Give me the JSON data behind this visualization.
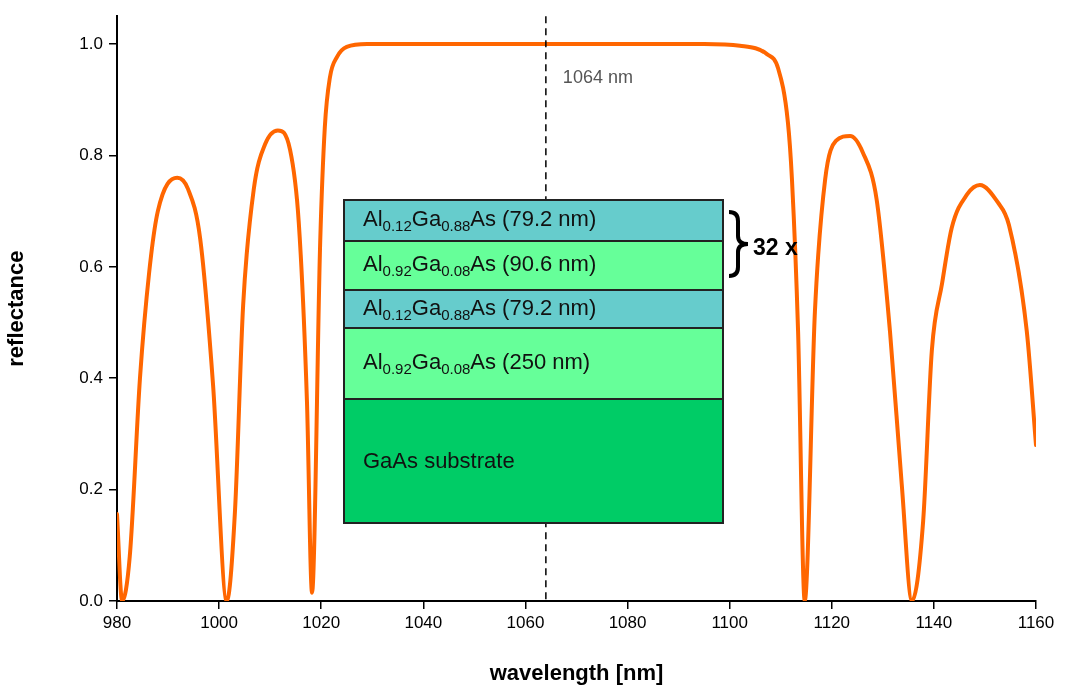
{
  "chart_data": {
    "type": "line",
    "xlabel": "wavelength [nm]",
    "ylabel": "reflectance",
    "series": [
      {
        "color": "#ff6600",
        "x": [
          980,
          981,
          982.5,
          984.5,
          986.3,
          988,
          991.8,
          993.9,
          996.3,
          998.8,
          1001.5,
          1003.1,
          1004.7,
          1006.8,
          1009,
          1011.5,
          1013.9,
          1015.6,
          1017.2,
          1018.2,
          1019.8,
          1020.7,
          1021.7,
          1023.1,
          1025,
          1029,
          1040,
          1060,
          1080,
          1095,
          1102,
          1107.3,
          1109.5,
          1111.4,
          1112.2,
          1113.4,
          1114.7,
          1116.7,
          1118.7,
          1120.8,
          1123.6,
          1126.1,
          1128.8,
          1131.4,
          1133.7,
          1135.7,
          1137.9,
          1139.6,
          1141.6,
          1143.5,
          1146.5,
          1149,
          1152.5,
          1154.7,
          1158.2,
          1160
        ],
        "values": [
          0.156,
          0,
          0.08,
          0.4,
          0.59,
          0.7,
          0.76,
          0.74,
          0.65,
          0.39,
          0,
          0.16,
          0.53,
          0.74,
          0.82,
          0.845,
          0.81,
          0.68,
          0.36,
          0.015,
          0.645,
          0.85,
          0.94,
          0.977,
          0.995,
          1,
          1,
          1,
          1,
          1,
          0.997,
          0.982,
          0.956,
          0.86,
          0.757,
          0.484,
          0,
          0.52,
          0.757,
          0.826,
          0.835,
          0.805,
          0.72,
          0.484,
          0.21,
          0,
          0.144,
          0.45,
          0.57,
          0.67,
          0.73,
          0.747,
          0.716,
          0.675,
          0.484,
          0.28
        ]
      }
    ],
    "xlim": [
      980,
      1160
    ],
    "xticks": [
      980,
      1000,
      1020,
      1040,
      1060,
      1080,
      1100,
      1120,
      1140,
      1160
    ],
    "ylim": [
      0,
      1.05
    ],
    "yticks": [
      {
        "value": 0,
        "label": "0.0"
      },
      0.2,
      0.4,
      0.6,
      0.8,
      {
        "value": 1,
        "label": "1.0"
      }
    ],
    "ref_lines": [
      {
        "axis": "x",
        "value": 1064,
        "label": "1064 nm",
        "color": "#000000",
        "line_style": "dashed"
      }
    ],
    "annotations": [
      "Al$_{0.12}$Ga$_{0.88}$As (79.2 nm)",
      "Al$_{0.92}$Ga$_{0.08}$As (90.6 nm)",
      "Al$_{0.12}$Ga$_{0.88}$As (79.2 nm)",
      "Al$_{0.92}$Ga$_{0.08}$As (250 nm)",
      "GaAs substrate",
      "32 x"
    ],
    "grid": false,
    "legend": false,
    "marker": "none",
    "line_style": "solid"
  }
}
